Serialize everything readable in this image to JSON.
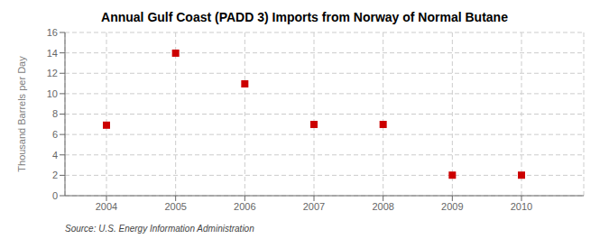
{
  "chart_data": {
    "type": "scatter",
    "title": "Annual Gulf Coast (PADD 3) Imports from Norway of Normal Butane",
    "ylabel": "Thousand Barrels per Day",
    "annotation": "Source: U.S. Energy Information Administration",
    "x": [
      2004,
      2005,
      2006,
      2007,
      2008,
      2009,
      2010
    ],
    "values": [
      6.912,
      13.973,
      10.959,
      6.986,
      6.986,
      2.014,
      2.014
    ],
    "color": "#cc0000",
    "marker": "square",
    "xlim": [
      2003.4,
      2010.9
    ],
    "xticks": [
      2004,
      2005,
      2006,
      2007,
      2008,
      2009,
      2010
    ],
    "ylim": [
      0,
      16
    ],
    "yticks": [
      0,
      2,
      4,
      6,
      8,
      10,
      12,
      14,
      16
    ],
    "grid": true
  }
}
